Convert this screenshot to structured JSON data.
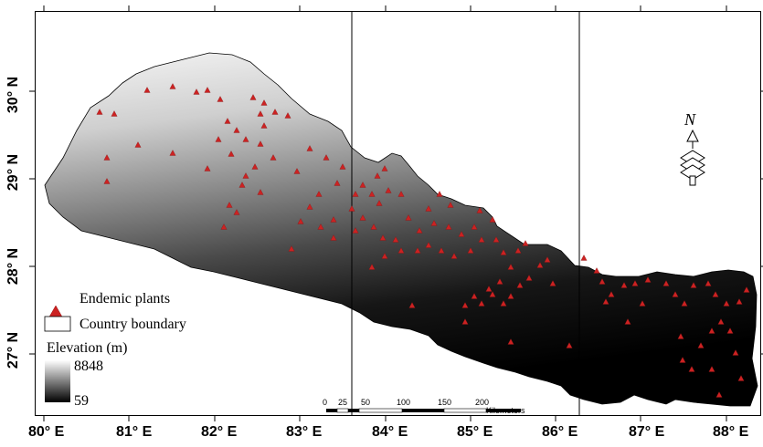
{
  "map": {
    "lon_labels": [
      "80° E",
      "81° E",
      "82° E",
      "83° E",
      "84° E",
      "85° E",
      "86° E",
      "87° E",
      "88° E"
    ],
    "lat_labels": [
      "30° N",
      "29° N",
      "28° N",
      "27° N"
    ],
    "point_color": "#cc2222",
    "boundary_color": "#000000"
  },
  "legend": {
    "endemic_label": "Endemic plants",
    "boundary_label": "Country boundary",
    "elevation_title": "Elevation (m)",
    "elevation_max": "8848",
    "elevation_min": "59"
  },
  "scalebar": {
    "ticks": [
      "0",
      "25",
      "50",
      "100",
      "150",
      "200"
    ],
    "unit": "Kilometers"
  },
  "north_arrow": {
    "label": "N"
  }
}
